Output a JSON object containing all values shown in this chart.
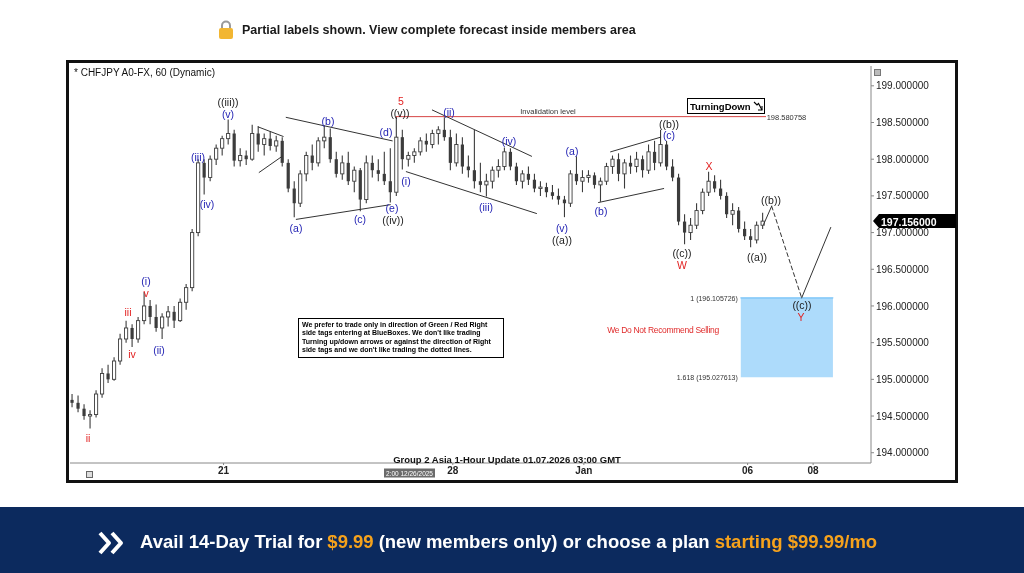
{
  "chart_data": {
    "type": "candlestick",
    "title": "* CHFJPY A0-FX, 60 (Dynamic)",
    "color": "#3c3c3c",
    "x": [
      "2025-12-16T09:00",
      "2025-12-16T13:24",
      "2025-12-16T17:48",
      "2025-12-16T22:12",
      "2025-12-17T02:36",
      "2025-12-17T07:00",
      "2025-12-17T11:24",
      "2025-12-17T15:48",
      "2025-12-17T20:12",
      "2025-12-18T00:36",
      "2025-12-18T05:00",
      "2025-12-18T09:24",
      "2025-12-18T13:48",
      "2025-12-18T18:12",
      "2025-12-18T22:36",
      "2025-12-19T03:00",
      "2025-12-19T07:24",
      "2025-12-19T11:48",
      "2025-12-19T16:12",
      "2025-12-19T20:36",
      "2025-12-20T01:00",
      "2025-12-20T05:24",
      "2025-12-20T09:48",
      "2025-12-20T14:12",
      "2025-12-20T18:36",
      "2025-12-20T23:00",
      "2025-12-21T03:24",
      "2025-12-21T07:48",
      "2025-12-21T12:12",
      "2025-12-21T16:36",
      "2025-12-21T21:00",
      "2025-12-22T01:24",
      "2025-12-22T05:48",
      "2025-12-22T10:12",
      "2025-12-22T14:36",
      "2025-12-22T19:00",
      "2025-12-22T23:24",
      "2025-12-23T03:48",
      "2025-12-23T08:12",
      "2025-12-23T12:36",
      "2025-12-23T17:00",
      "2025-12-23T21:24",
      "2025-12-24T01:48",
      "2025-12-24T06:12",
      "2025-12-24T10:36",
      "2025-12-24T15:00",
      "2025-12-24T19:24",
      "2025-12-24T23:48",
      "2025-12-25T04:12",
      "2025-12-25T08:36",
      "2025-12-25T13:00",
      "2025-12-25T17:24",
      "2025-12-25T21:48",
      "2025-12-26T02:12",
      "2025-12-26T06:36",
      "2025-12-26T11:00",
      "2025-12-26T15:24",
      "2025-12-26T19:48",
      "2025-12-27T00:12",
      "2025-12-27T04:36",
      "2025-12-27T09:00",
      "2025-12-27T13:24",
      "2025-12-27T17:48",
      "2025-12-27T22:12",
      "2025-12-28T02:36",
      "2025-12-28T07:00",
      "2025-12-28T11:24",
      "2025-12-28T15:48",
      "2025-12-28T20:12",
      "2025-12-29T00:36",
      "2025-12-29T05:00",
      "2025-12-29T09:24",
      "2025-12-29T13:48",
      "2025-12-29T18:12",
      "2025-12-29T22:36",
      "2025-12-30T03:00",
      "2025-12-30T07:24",
      "2025-12-30T11:48",
      "2025-12-30T16:12",
      "2025-12-30T20:36",
      "2025-12-31T01:00",
      "2025-12-31T05:24",
      "2025-12-31T09:48",
      "2025-12-31T14:12",
      "2025-12-31T18:36",
      "2025-12-31T23:00",
      "2026-01-01T03:24",
      "2026-01-01T07:48",
      "2026-01-01T12:12",
      "2026-01-01T16:36",
      "2026-01-01T21:00",
      "2026-01-02T01:24",
      "2026-01-02T05:48",
      "2026-01-02T10:12",
      "2026-01-02T14:36",
      "2026-01-02T19:00",
      "2026-01-02T23:24",
      "2026-01-03T03:48",
      "2026-01-03T08:12",
      "2026-01-03T12:36",
      "2026-01-03T17:00",
      "2026-01-03T21:24",
      "2026-01-04T01:48",
      "2026-01-04T06:12",
      "2026-01-04T10:36",
      "2026-01-04T15:00",
      "2026-01-04T19:24",
      "2026-01-04T23:48",
      "2026-01-05T04:12",
      "2026-01-05T08:36",
      "2026-01-05T13:00",
      "2026-01-05T17:24",
      "2026-01-05T21:48",
      "2026-01-06T02:12",
      "2026-01-06T06:36",
      "2026-01-06T11:00"
    ],
    "ohlc": [
      [
        194.72,
        194.8,
        194.62,
        194.68
      ],
      [
        194.68,
        194.78,
        194.55,
        194.6
      ],
      [
        194.6,
        194.66,
        194.45,
        194.5
      ],
      [
        194.5,
        194.58,
        194.33,
        194.52
      ],
      [
        194.52,
        194.85,
        194.48,
        194.8
      ],
      [
        194.8,
        195.15,
        194.75,
        195.08
      ],
      [
        195.08,
        195.2,
        194.95,
        195.0
      ],
      [
        195.0,
        195.3,
        194.98,
        195.25
      ],
      [
        195.25,
        195.62,
        195.2,
        195.55
      ],
      [
        195.55,
        195.8,
        195.5,
        195.7
      ],
      [
        195.7,
        195.75,
        195.44,
        195.55
      ],
      [
        195.55,
        195.85,
        195.5,
        195.8
      ],
      [
        195.8,
        196.19,
        195.75,
        196.0
      ],
      [
        196.0,
        196.08,
        195.75,
        195.85
      ],
      [
        195.85,
        196.02,
        195.65,
        195.7
      ],
      [
        195.7,
        195.9,
        195.55,
        195.85
      ],
      [
        195.85,
        196.0,
        195.72,
        195.92
      ],
      [
        195.92,
        196.0,
        195.7,
        195.8
      ],
      [
        195.8,
        196.1,
        195.78,
        196.05
      ],
      [
        196.05,
        196.3,
        195.95,
        196.25
      ],
      [
        196.25,
        197.05,
        196.2,
        197.0
      ],
      [
        197.0,
        198.0,
        196.95,
        197.95
      ],
      [
        197.95,
        198.0,
        197.52,
        197.75
      ],
      [
        197.75,
        198.05,
        197.7,
        198.0
      ],
      [
        198.0,
        198.2,
        197.92,
        198.15
      ],
      [
        198.15,
        198.32,
        198.05,
        198.28
      ],
      [
        198.28,
        198.54,
        198.2,
        198.35
      ],
      [
        198.35,
        198.4,
        197.9,
        197.98
      ],
      [
        197.98,
        198.15,
        197.9,
        198.05
      ],
      [
        198.05,
        198.12,
        197.92,
        198.0
      ],
      [
        198.0,
        198.47,
        197.98,
        198.35
      ],
      [
        198.35,
        198.45,
        198.1,
        198.2
      ],
      [
        198.2,
        198.35,
        198.05,
        198.28
      ],
      [
        198.28,
        198.38,
        198.12,
        198.18
      ],
      [
        198.18,
        198.32,
        198.1,
        198.25
      ],
      [
        198.25,
        198.3,
        197.9,
        197.95
      ],
      [
        197.95,
        198.0,
        197.55,
        197.6
      ],
      [
        197.6,
        197.7,
        197.21,
        197.4
      ],
      [
        197.4,
        197.85,
        197.35,
        197.8
      ],
      [
        197.8,
        198.1,
        197.7,
        198.05
      ],
      [
        198.05,
        198.2,
        197.85,
        197.95
      ],
      [
        197.95,
        198.3,
        197.9,
        198.25
      ],
      [
        198.25,
        198.46,
        198.15,
        198.3
      ],
      [
        198.3,
        198.42,
        197.95,
        198.0
      ],
      [
        198.0,
        198.1,
        197.75,
        197.8
      ],
      [
        197.8,
        198.05,
        197.72,
        197.95
      ],
      [
        197.95,
        198.1,
        197.65,
        197.7
      ],
      [
        197.7,
        197.9,
        197.55,
        197.85
      ],
      [
        197.85,
        197.88,
        197.29,
        197.45
      ],
      [
        197.45,
        198.05,
        197.4,
        197.95
      ],
      [
        197.95,
        198.05,
        197.75,
        197.85
      ],
      [
        197.85,
        198.0,
        197.7,
        197.8
      ],
      [
        197.8,
        198.1,
        197.65,
        197.7
      ],
      [
        197.7,
        198.15,
        197.41,
        197.55
      ],
      [
        197.55,
        198.58,
        197.5,
        198.3
      ],
      [
        198.3,
        198.4,
        197.86,
        198.0
      ],
      [
        198.0,
        198.1,
        197.9,
        198.05
      ],
      [
        198.05,
        198.15,
        197.95,
        198.1
      ],
      [
        198.1,
        198.3,
        198.05,
        198.25
      ],
      [
        198.25,
        198.35,
        198.1,
        198.2
      ],
      [
        198.2,
        198.4,
        198.15,
        198.35
      ],
      [
        198.35,
        198.45,
        198.2,
        198.4
      ],
      [
        198.4,
        198.57,
        198.25,
        198.3
      ],
      [
        198.3,
        198.4,
        197.85,
        197.95
      ],
      [
        197.95,
        198.35,
        197.9,
        198.2
      ],
      [
        198.2,
        198.3,
        197.8,
        197.9
      ],
      [
        197.9,
        198.05,
        197.75,
        197.85
      ],
      [
        197.85,
        198.4,
        197.6,
        197.7
      ],
      [
        197.7,
        197.95,
        197.55,
        197.65
      ],
      [
        197.65,
        197.8,
        197.49,
        197.7
      ],
      [
        197.7,
        197.9,
        197.6,
        197.85
      ],
      [
        197.85,
        198.0,
        197.75,
        197.9
      ],
      [
        197.9,
        198.16,
        197.85,
        198.1
      ],
      [
        198.1,
        198.15,
        197.85,
        197.9
      ],
      [
        197.9,
        197.95,
        197.65,
        197.7
      ],
      [
        197.7,
        197.85,
        197.6,
        197.8
      ],
      [
        197.8,
        197.9,
        197.65,
        197.72
      ],
      [
        197.72,
        197.8,
        197.55,
        197.6
      ],
      [
        197.6,
        197.7,
        197.5,
        197.62
      ],
      [
        197.62,
        197.68,
        197.48,
        197.55
      ],
      [
        197.55,
        197.65,
        197.45,
        197.5
      ],
      [
        197.5,
        197.6,
        197.38,
        197.45
      ],
      [
        197.45,
        197.5,
        197.21,
        197.4
      ],
      [
        197.4,
        197.85,
        197.35,
        197.8
      ],
      [
        197.8,
        198.04,
        197.65,
        197.7
      ],
      [
        197.7,
        197.85,
        197.55,
        197.75
      ],
      [
        197.75,
        197.85,
        197.68,
        197.78
      ],
      [
        197.78,
        197.82,
        197.6,
        197.65
      ],
      [
        197.65,
        197.75,
        197.42,
        197.7
      ],
      [
        197.7,
        197.95,
        197.65,
        197.9
      ],
      [
        197.9,
        198.05,
        197.8,
        198.0
      ],
      [
        198.0,
        198.08,
        197.7,
        197.8
      ],
      [
        197.8,
        198.0,
        197.6,
        197.95
      ],
      [
        197.95,
        198.05,
        197.8,
        197.9
      ],
      [
        197.9,
        198.1,
        197.82,
        198.0
      ],
      [
        198.0,
        198.05,
        197.75,
        197.85
      ],
      [
        197.85,
        198.2,
        197.8,
        198.1
      ],
      [
        198.1,
        198.25,
        197.85,
        197.95
      ],
      [
        197.95,
        198.4,
        197.9,
        198.2
      ],
      [
        198.2,
        198.25,
        197.85,
        197.9
      ],
      [
        197.9,
        198.0,
        197.7,
        197.75
      ],
      [
        197.75,
        197.8,
        197.1,
        197.15
      ],
      [
        197.15,
        197.25,
        196.84,
        197.0
      ],
      [
        197.0,
        197.2,
        196.9,
        197.1
      ],
      [
        197.1,
        197.4,
        197.05,
        197.3
      ],
      [
        197.3,
        197.6,
        197.25,
        197.55
      ],
      [
        197.55,
        197.83,
        197.5,
        197.7
      ],
      [
        197.7,
        197.78,
        197.55,
        197.6
      ],
      [
        197.6,
        197.72,
        197.45,
        197.5
      ],
      [
        197.5,
        197.55,
        197.2,
        197.25
      ],
      [
        197.25,
        197.4,
        197.1,
        197.3
      ],
      [
        197.3,
        197.35,
        197.0,
        197.05
      ],
      [
        197.05,
        197.15,
        196.9,
        196.95
      ],
      [
        196.95,
        197.05,
        196.8,
        196.9
      ],
      [
        196.9,
        197.15,
        196.85,
        197.1
      ],
      [
        197.1,
        197.27,
        197.05,
        197.156
      ]
    ],
    "series": [
      {
        "type": "line",
        "x": [
          "2026-01-05T19:00",
          "2026-01-08T14:30"
        ],
        "values": [
          196.11,
          196.11
        ],
        "lower": [
          195.03,
          195.03
        ],
        "upper": [
          196.11,
          196.11
        ],
        "color": "#5bb7f7"
      },
      {
        "type": "line",
        "x": [
          "2025-12-26T06:36",
          "2026-01-06T13:12"
        ],
        "values": [
          198.58,
          198.58
        ],
        "color": "#d64545"
      },
      {
        "type": "line",
        "x": [
          "2025-12-22T01:24",
          "2025-12-22T19:42"
        ],
        "values": [
          198.44,
          198.31
        ],
        "color": "#333333"
      },
      {
        "type": "line",
        "x": [
          "2025-12-22T02:06",
          "2025-12-22T19:00"
        ],
        "values": [
          197.82,
          198.04
        ],
        "color": "#333333"
      },
      {
        "type": "line",
        "x": [
          "2025-12-22T21:54",
          "2025-12-26T03:36"
        ],
        "values": [
          198.57,
          198.25
        ],
        "color": "#333333"
      },
      {
        "type": "line",
        "x": [
          "2025-12-23T05:18",
          "2025-12-26T02:12"
        ],
        "values": [
          197.18,
          197.38
        ],
        "color": "#333333"
      },
      {
        "type": "line",
        "x": [
          "2025-12-27T09:00",
          "2025-12-30T09:42"
        ],
        "values": [
          198.67,
          198.04
        ],
        "color": "#333333"
      },
      {
        "type": "line",
        "x": [
          "2025-12-26T13:54",
          "2025-12-30T13:18"
        ],
        "values": [
          197.83,
          197.26
        ],
        "color": "#333333"
      },
      {
        "type": "line",
        "x": [
          "2026-01-01T19:36",
          "2026-01-03T08:18"
        ],
        "values": [
          198.1,
          198.3
        ],
        "color": "#333333"
      },
      {
        "type": "line",
        "x": [
          "2026-01-01T10:48",
          "2026-01-03T10:30"
        ],
        "values": [
          197.41,
          197.6
        ],
        "color": "#333333"
      },
      {
        "type": "line",
        "x": [
          "2026-01-06T11:42",
          "2026-01-06T17:36"
        ],
        "values": [
          197.11,
          197.36
        ],
        "color": "#333333"
      },
      {
        "type": "line",
        "x": [
          "2026-01-06T17:36",
          "2026-01-07T15:36"
        ],
        "values": [
          197.36,
          196.11
        ],
        "color": "#333333",
        "line_style": "dashed"
      },
      {
        "type": "line",
        "x": [
          "2026-01-07T15:36",
          "2026-01-08T12:54"
        ],
        "values": [
          196.11,
          197.07
        ],
        "color": "#333333"
      }
    ],
    "xlim": [
      "2025-12-16T07:30",
      "2026-01-09T18:24"
    ],
    "xticks": [
      {
        "value": "2025-12-21",
        "label": "21"
      },
      {
        "value": "2025-12-28",
        "label": "28"
      },
      {
        "value": "2026-01-01",
        "label": "Jan"
      },
      {
        "value": "2026-01-06",
        "label": "06"
      },
      {
        "value": "2026-01-08",
        "label": "08"
      }
    ],
    "ylim": [
      193.86,
      199.27
    ],
    "yticks": [
      {
        "value": 194,
        "label": "194.000000"
      },
      {
        "value": 194.5,
        "label": "194.500000"
      },
      {
        "value": 195,
        "label": "195.000000"
      },
      {
        "value": 195.5,
        "label": "195.500000"
      },
      {
        "value": 196,
        "label": "196.000000"
      },
      {
        "value": 196.5,
        "label": "196.500000"
      },
      {
        "value": 197,
        "label": "197.000000"
      },
      {
        "value": 197.5,
        "label": "197.500000"
      },
      {
        "value": 198,
        "label": "198.000000"
      },
      {
        "value": 198.5,
        "label": "198.500000"
      },
      {
        "value": 199,
        "label": "199.000000"
      }
    ],
    "annotations": [
      "Partial labels shown. View complete forecast inside members area",
      "Group 2 Asia 1-Hour Update 01.07.2026 03:00 GMT",
      "We prefer to trade only in direction of Green / Red Right side tags entering at BlueBoxes. We don't like trading Turning up/down arrows or against the direction of Right side tags and we don't like trading the dotted lines.",
      "2:00 12/26/2025",
      "197.156000",
      "Avail 14-Day Trial for",
      "$9.99",
      "(new members only) or choose a plan",
      "starting $99.99/mo",
      "Invalidation level",
      "TurningDown",
      {
        "text": "198.580758",
        "x": "2026-01-06T13:12",
        "y": 198.58
      },
      {
        "text": "1 (196.105726)",
        "x": "2026-01-05T19:00",
        "y": 196.11
      },
      {
        "text": "1.618 (195.027613)",
        "x": "2026-01-05T19:00",
        "y": 195.03
      },
      "We Do Not Recommend Selling",
      "ii",
      "iii",
      "iv",
      "v",
      "(i)",
      "(ii)",
      "(iii)",
      "(iv)",
      "(v)",
      "((iii))",
      "(a)",
      "(b)",
      "(c)",
      "(d)",
      "(e)",
      "((iv))",
      "5",
      "((v))",
      "(i)",
      "(ii)",
      "(iii)",
      "(iv)",
      "(v)",
      "((a))",
      "(a)",
      "(b)",
      "((b))",
      "(c)",
      "X",
      "((c))",
      "W",
      "((a))",
      "((b))",
      "((c))",
      "Y"
    ]
  }
}
